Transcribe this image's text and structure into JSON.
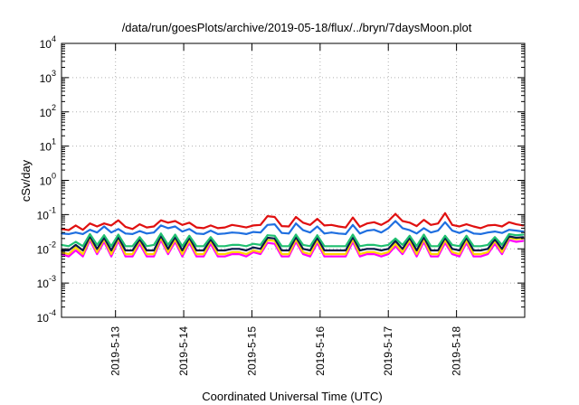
{
  "chart_data": {
    "type": "line",
    "title": "/data/run/goesPlots/archive/2019-05-18/flux/../bryn/7daysMoon.plot",
    "xlabel": "Coordinated Universal Time (UTC)",
    "ylabel": "cSv/day",
    "yscale": "log",
    "ylim": [
      0.0001,
      10000
    ],
    "xlim": [
      "2019-05-12T05:00",
      "2019-05-19T00:00"
    ],
    "grid": true,
    "y_ticks": [
      {
        "value": 0.0001,
        "base": "10",
        "exp": "-4"
      },
      {
        "value": 0.001,
        "base": "10",
        "exp": "-3"
      },
      {
        "value": 0.01,
        "base": "10",
        "exp": "-2"
      },
      {
        "value": 0.1,
        "base": "10",
        "exp": "-1"
      },
      {
        "value": 1,
        "base": "10",
        "exp": "0"
      },
      {
        "value": 10,
        "base": "10",
        "exp": "1"
      },
      {
        "value": 100,
        "base": "10",
        "exp": "2"
      },
      {
        "value": 1000,
        "base": "10",
        "exp": "3"
      },
      {
        "value": 10000,
        "base": "10",
        "exp": "4"
      }
    ],
    "x_ticks": [
      "2019-5-13",
      "2019-5-14",
      "2019-5-15",
      "2019-5-16",
      "2019-5-17",
      "2019-5-18"
    ],
    "x": [
      "2019-05-12T05:00",
      "2019-05-12T07:30",
      "2019-05-12T10:00",
      "2019-05-12T12:30",
      "2019-05-12T15:00",
      "2019-05-12T17:30",
      "2019-05-12T20:00",
      "2019-05-12T22:30",
      "2019-05-13T01:00",
      "2019-05-13T03:30",
      "2019-05-13T06:00",
      "2019-05-13T08:30",
      "2019-05-13T11:00",
      "2019-05-13T13:30",
      "2019-05-13T16:00",
      "2019-05-13T18:30",
      "2019-05-13T21:00",
      "2019-05-13T23:30",
      "2019-05-14T02:00",
      "2019-05-14T04:30",
      "2019-05-14T07:00",
      "2019-05-14T09:30",
      "2019-05-14T12:00",
      "2019-05-14T14:30",
      "2019-05-14T17:00",
      "2019-05-14T19:30",
      "2019-05-14T22:00",
      "2019-05-15T00:30",
      "2019-05-15T03:00",
      "2019-05-15T05:30",
      "2019-05-15T08:00",
      "2019-05-15T10:30",
      "2019-05-15T13:00",
      "2019-05-15T15:30",
      "2019-05-15T18:00",
      "2019-05-15T20:30",
      "2019-05-15T23:00",
      "2019-05-16T01:30",
      "2019-05-16T04:00",
      "2019-05-16T06:30",
      "2019-05-16T09:00",
      "2019-05-16T11:30",
      "2019-05-16T14:00",
      "2019-05-16T16:30",
      "2019-05-16T19:00",
      "2019-05-16T21:30",
      "2019-05-17T00:00",
      "2019-05-17T02:30",
      "2019-05-17T05:00",
      "2019-05-17T07:30",
      "2019-05-17T10:00",
      "2019-05-17T12:30",
      "2019-05-17T15:00",
      "2019-05-17T17:30",
      "2019-05-17T20:00",
      "2019-05-17T22:30",
      "2019-05-18T01:00",
      "2019-05-18T03:30",
      "2019-05-18T06:00",
      "2019-05-18T08:30",
      "2019-05-18T11:00",
      "2019-05-18T13:30",
      "2019-05-18T16:00",
      "2019-05-18T18:30",
      "2019-05-18T21:00",
      "2019-05-18T23:30"
    ],
    "series": [
      {
        "color": "#ff00ff",
        "values": [
          0.007,
          0.006,
          0.009,
          0.006,
          0.018,
          0.007,
          0.016,
          0.006,
          0.017,
          0.006,
          0.006,
          0.014,
          0.006,
          0.006,
          0.018,
          0.007,
          0.016,
          0.006,
          0.015,
          0.006,
          0.006,
          0.014,
          0.006,
          0.006,
          0.007,
          0.007,
          0.006,
          0.008,
          0.007,
          0.015,
          0.014,
          0.006,
          0.006,
          0.016,
          0.007,
          0.006,
          0.015,
          0.006,
          0.006,
          0.006,
          0.006,
          0.016,
          0.006,
          0.007,
          0.007,
          0.006,
          0.007,
          0.012,
          0.007,
          0.015,
          0.006,
          0.016,
          0.006,
          0.006,
          0.015,
          0.007,
          0.006,
          0.015,
          0.006,
          0.006,
          0.007,
          0.014,
          0.007,
          0.018,
          0.016,
          0.017
        ]
      },
      {
        "color": "#ffd400",
        "values": [
          0.008,
          0.007,
          0.011,
          0.007,
          0.021,
          0.008,
          0.019,
          0.007,
          0.02,
          0.007,
          0.007,
          0.017,
          0.007,
          0.007,
          0.021,
          0.008,
          0.019,
          0.007,
          0.018,
          0.007,
          0.007,
          0.017,
          0.007,
          0.007,
          0.008,
          0.008,
          0.007,
          0.009,
          0.008,
          0.018,
          0.017,
          0.007,
          0.007,
          0.019,
          0.008,
          0.007,
          0.018,
          0.007,
          0.007,
          0.007,
          0.007,
          0.019,
          0.007,
          0.008,
          0.008,
          0.007,
          0.008,
          0.014,
          0.008,
          0.018,
          0.007,
          0.019,
          0.007,
          0.007,
          0.018,
          0.008,
          0.007,
          0.018,
          0.007,
          0.007,
          0.008,
          0.017,
          0.008,
          0.021,
          0.019,
          0.02
        ]
      },
      {
        "color": "#0b1a4a",
        "values": [
          0.009,
          0.009,
          0.013,
          0.009,
          0.023,
          0.01,
          0.021,
          0.009,
          0.022,
          0.009,
          0.009,
          0.019,
          0.009,
          0.009,
          0.024,
          0.01,
          0.022,
          0.009,
          0.021,
          0.009,
          0.009,
          0.019,
          0.009,
          0.009,
          0.01,
          0.01,
          0.009,
          0.011,
          0.01,
          0.021,
          0.02,
          0.009,
          0.009,
          0.022,
          0.01,
          0.009,
          0.021,
          0.009,
          0.009,
          0.009,
          0.009,
          0.022,
          0.009,
          0.01,
          0.01,
          0.009,
          0.01,
          0.017,
          0.01,
          0.021,
          0.009,
          0.022,
          0.009,
          0.009,
          0.021,
          0.01,
          0.009,
          0.021,
          0.009,
          0.009,
          0.01,
          0.019,
          0.01,
          0.023,
          0.021,
          0.022
        ]
      },
      {
        "color": "#20c070",
        "values": [
          0.013,
          0.012,
          0.016,
          0.012,
          0.027,
          0.013,
          0.025,
          0.012,
          0.026,
          0.012,
          0.012,
          0.022,
          0.012,
          0.013,
          0.028,
          0.013,
          0.026,
          0.012,
          0.024,
          0.012,
          0.012,
          0.022,
          0.012,
          0.012,
          0.013,
          0.013,
          0.012,
          0.014,
          0.013,
          0.025,
          0.024,
          0.012,
          0.012,
          0.026,
          0.013,
          0.012,
          0.025,
          0.012,
          0.012,
          0.012,
          0.012,
          0.026,
          0.012,
          0.013,
          0.013,
          0.012,
          0.013,
          0.02,
          0.013,
          0.024,
          0.012,
          0.026,
          0.012,
          0.012,
          0.024,
          0.013,
          0.012,
          0.024,
          0.012,
          0.012,
          0.013,
          0.022,
          0.013,
          0.027,
          0.025,
          0.026
        ]
      },
      {
        "color": "#1f6fe0",
        "values": [
          0.028,
          0.027,
          0.03,
          0.027,
          0.036,
          0.03,
          0.045,
          0.03,
          0.038,
          0.028,
          0.027,
          0.033,
          0.028,
          0.03,
          0.048,
          0.04,
          0.045,
          0.032,
          0.038,
          0.028,
          0.027,
          0.034,
          0.027,
          0.028,
          0.03,
          0.029,
          0.027,
          0.031,
          0.03,
          0.05,
          0.052,
          0.029,
          0.028,
          0.055,
          0.035,
          0.03,
          0.045,
          0.028,
          0.03,
          0.028,
          0.027,
          0.05,
          0.028,
          0.034,
          0.036,
          0.03,
          0.04,
          0.065,
          0.04,
          0.035,
          0.028,
          0.04,
          0.03,
          0.034,
          0.06,
          0.034,
          0.029,
          0.035,
          0.028,
          0.027,
          0.03,
          0.032,
          0.029,
          0.036,
          0.034,
          0.032
        ]
      },
      {
        "color": "#e01010",
        "values": [
          0.038,
          0.035,
          0.048,
          0.036,
          0.055,
          0.045,
          0.055,
          0.048,
          0.068,
          0.044,
          0.038,
          0.052,
          0.042,
          0.045,
          0.068,
          0.058,
          0.065,
          0.05,
          0.058,
          0.042,
          0.04,
          0.048,
          0.04,
          0.042,
          0.05,
          0.046,
          0.042,
          0.048,
          0.05,
          0.09,
          0.085,
          0.046,
          0.045,
          0.085,
          0.058,
          0.05,
          0.075,
          0.048,
          0.05,
          0.045,
          0.042,
          0.082,
          0.044,
          0.055,
          0.06,
          0.05,
          0.065,
          0.105,
          0.065,
          0.058,
          0.046,
          0.07,
          0.05,
          0.055,
          0.11,
          0.05,
          0.045,
          0.052,
          0.045,
          0.04,
          0.048,
          0.05,
          0.045,
          0.06,
          0.052,
          0.048
        ]
      }
    ]
  }
}
